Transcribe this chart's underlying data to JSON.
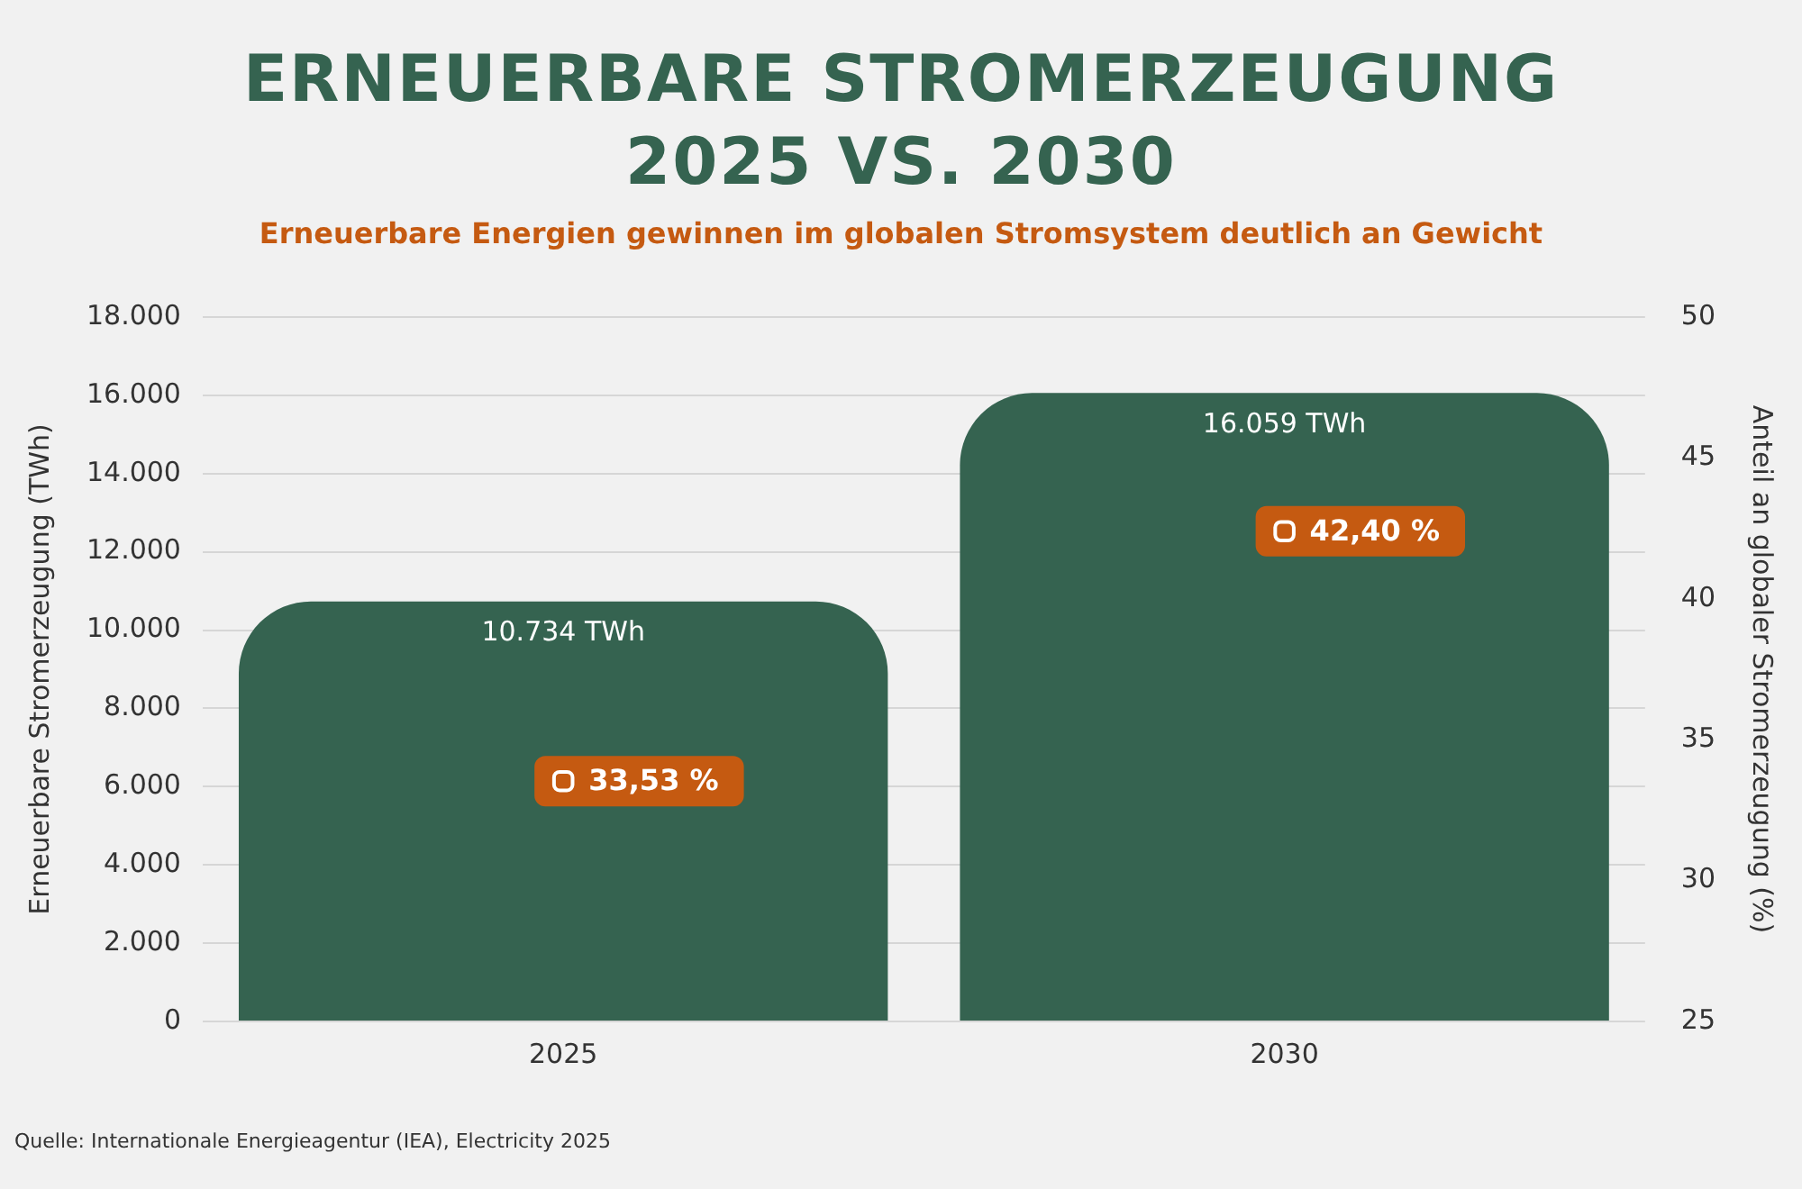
{
  "chart_data": {
    "type": "bar",
    "title": "ERNEUERBARE STROMERZEUGUNG\n2025 VS. 2030",
    "subtitle": "Erneuerbare Energien gewinnen im globalen Stromsystem deutlich an Gewicht",
    "ylabel": "Erneuerbare Stromerzeugung (TWh)",
    "y2label": "Anteil an globaler Stromerzeugung (%)",
    "categories": [
      "2025",
      "2030"
    ],
    "series": [
      {
        "color": "#356350",
        "values": [
          10734,
          16059
        ],
        "value_labels": [
          "10.734 TWh",
          "16.059 TWh"
        ]
      },
      {
        "type": "scatter",
        "axis": "y2",
        "color": "#c55a11",
        "marker": "square",
        "values": [
          33.53,
          42.4
        ],
        "value_labels": [
          "33,53 %",
          "42,40 %"
        ]
      }
    ],
    "ylim": [
      0,
      18000
    ],
    "yticks": [
      0,
      {
        "value": 2000,
        "label": "2.000"
      },
      {
        "value": 4000,
        "label": "4.000"
      },
      {
        "value": 6000,
        "label": "6.000"
      },
      {
        "value": 8000,
        "label": "8.000"
      },
      {
        "value": 10000,
        "label": "10.000"
      },
      {
        "value": 12000,
        "label": "12.000"
      },
      {
        "value": 14000,
        "label": "14.000"
      },
      {
        "value": 16000,
        "label": "16.000"
      },
      {
        "value": 18000,
        "label": "18.000"
      }
    ],
    "y2lim": [
      25,
      50
    ],
    "y2ticks": [
      25,
      30,
      35,
      40,
      45,
      50
    ],
    "grid": "y",
    "legend": false,
    "annotations": [
      "Quelle: Internationale Energieagentur (IEA), Electricity 2025"
    ]
  }
}
